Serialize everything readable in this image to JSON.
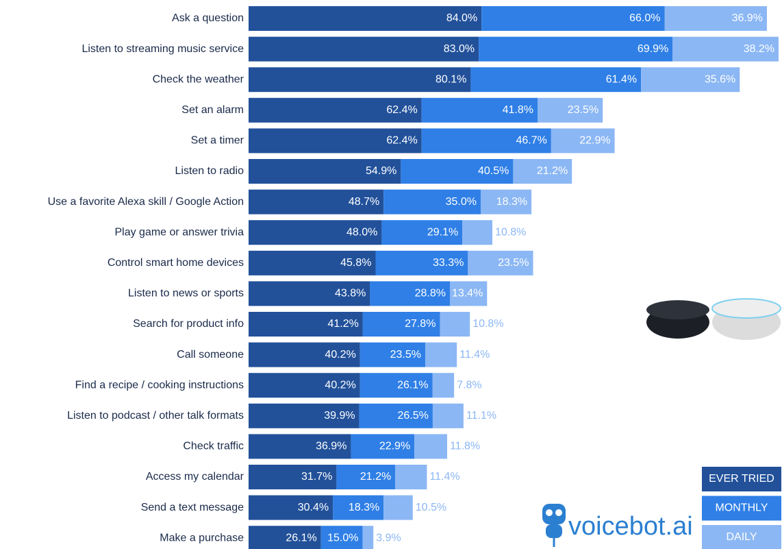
{
  "chart_data": {
    "type": "stacked-bar-horizontal",
    "categories": [
      "Ask a question",
      "Listen to streaming music service",
      "Check the weather",
      "Set an alarm",
      "Set a timer",
      "Listen to radio",
      "Use a favorite Alexa skill / Google Action",
      "Play game or answer trivia",
      "Control smart home devices",
      "Listen to news or sports",
      "Search for product info",
      "Call someone",
      "Find a recipe / cooking instructions",
      "Listen to podcast / other talk formats",
      "Check traffic",
      "Access my calendar",
      "Send a text message",
      "Make a purchase"
    ],
    "series": [
      {
        "name": "EVER TRIED",
        "color": "#22519a",
        "values": [
          84.0,
          83.0,
          80.1,
          62.4,
          62.4,
          54.9,
          48.7,
          48.0,
          45.8,
          43.8,
          41.2,
          40.2,
          40.2,
          39.9,
          36.9,
          31.7,
          30.4,
          26.1
        ],
        "value_labels": [
          "84.0%",
          "83.0%",
          "80.1%",
          "62.4%",
          "62.4%",
          "54.9%",
          "48.7%",
          "48.0%",
          "45.8%",
          "43.8%",
          "41.2%",
          "40.2%",
          "40.2%",
          "39.9%",
          "36.9%",
          "31.7%",
          "30.4%",
          "26.1%"
        ]
      },
      {
        "name": "MONTHLY",
        "color": "#2f7fe6",
        "values": [
          66.0,
          69.9,
          61.4,
          41.8,
          46.7,
          40.5,
          35.0,
          29.1,
          33.3,
          28.8,
          27.8,
          23.5,
          26.1,
          26.5,
          22.9,
          21.2,
          18.3,
          15.0
        ],
        "value_labels": [
          "66.0%",
          "69.9%",
          "61.4%",
          "41.8%",
          "46.7%",
          "40.5%",
          "35.0%",
          "29.1%",
          "33.3%",
          "28.8%",
          "27.8%",
          "23.5%",
          "26.1%",
          "26.5%",
          "22.9%",
          "21.2%",
          "18.3%",
          "15.0%"
        ]
      },
      {
        "name": "DAILY",
        "color": "#8bb7f4",
        "values": [
          36.9,
          38.2,
          35.6,
          23.5,
          22.9,
          21.2,
          18.3,
          10.8,
          23.5,
          13.4,
          10.8,
          11.4,
          7.8,
          11.1,
          11.8,
          11.4,
          10.5,
          3.9
        ],
        "value_labels": [
          "36.9%",
          "38.2%",
          "35.6%",
          "23.5%",
          "22.9%",
          "21.2%",
          "18.3%",
          "10.8%",
          "23.5%",
          "13.4%",
          "10.8%",
          "11.4%",
          "7.8%",
          "11.1%",
          "11.8%",
          "11.4%",
          "10.5%",
          "3.9%"
        ]
      }
    ],
    "legend": "bottom-right",
    "logo": "voicebot.ai"
  }
}
